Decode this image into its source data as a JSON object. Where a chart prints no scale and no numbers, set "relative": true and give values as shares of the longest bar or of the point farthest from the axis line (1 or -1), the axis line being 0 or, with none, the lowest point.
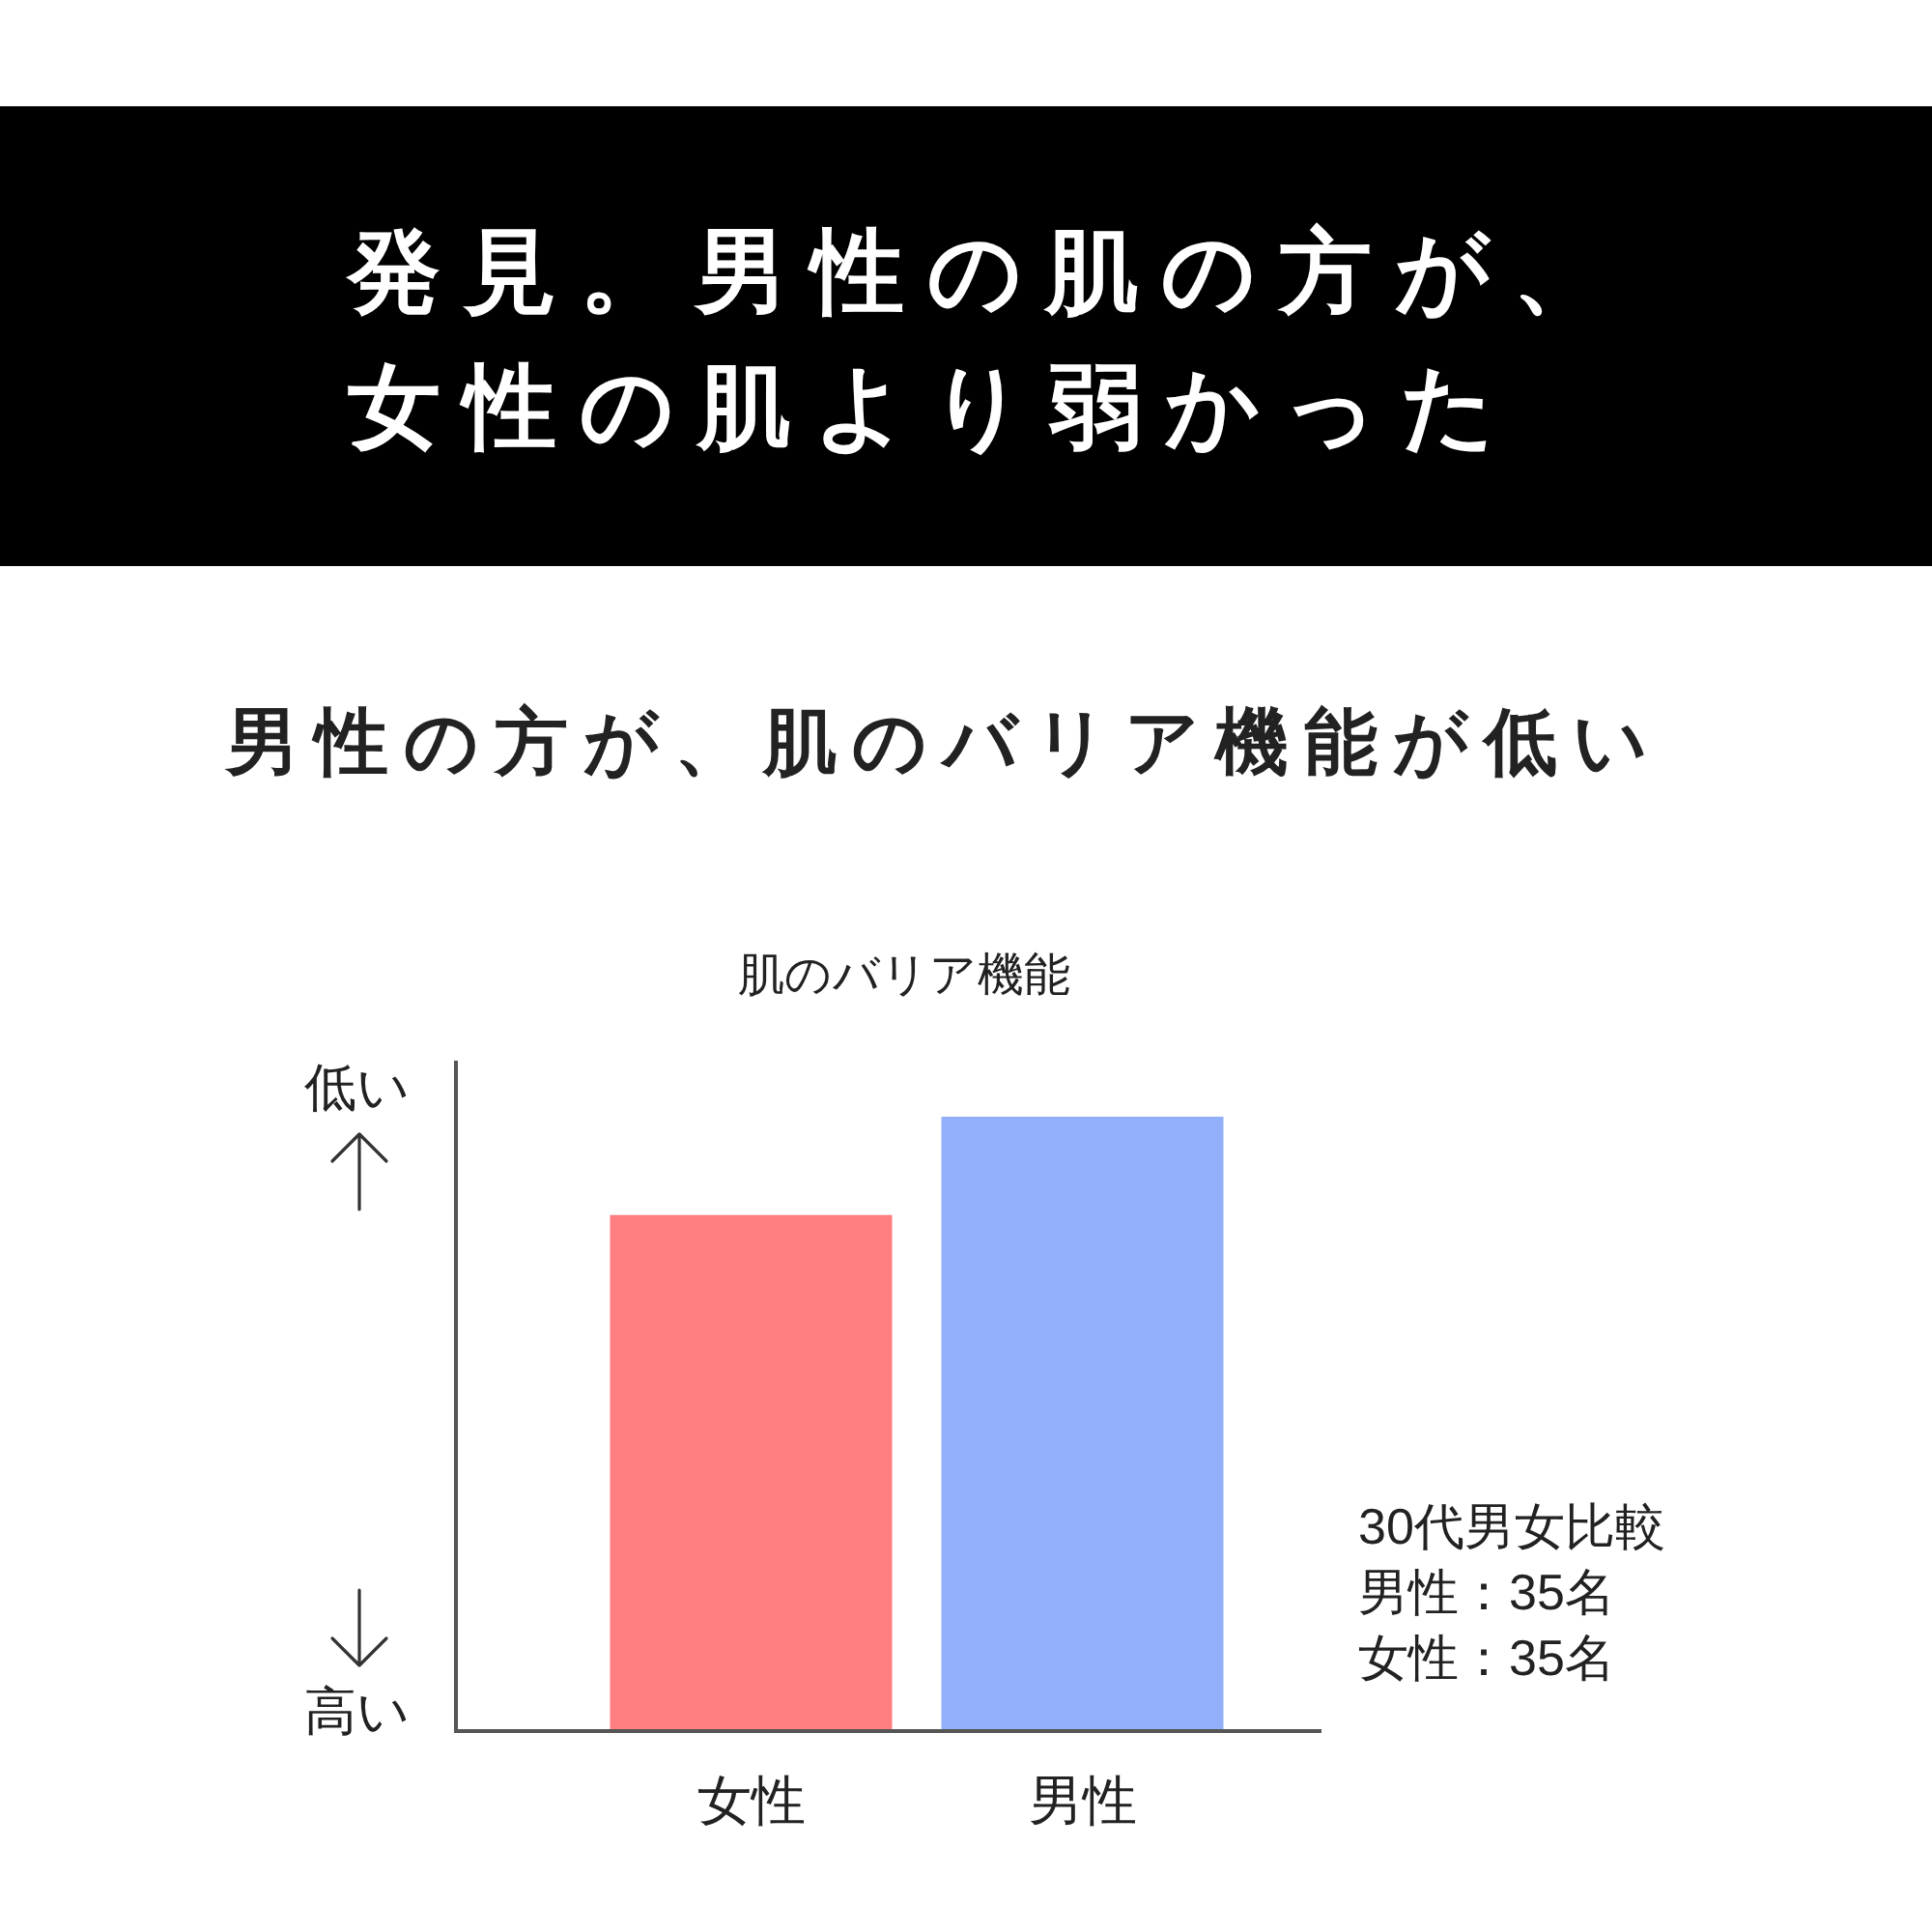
{
  "chart_data": {
    "type": "bar",
    "title": "発見。男性の肌の方が、女性の肌より弱かった",
    "subtitle": "男性の方が、肌のバリア機能が低い",
    "categories": [
      "女性",
      "男性"
    ],
    "values": [
      0.84,
      1
    ],
    "colors": [
      "#ff7f80",
      "#91b0f9"
    ],
    "relative": true,
    "annotations": [
      "肌のバリア機能",
      "低い",
      "高い",
      "30代男女比較",
      "男性：35名",
      "女性：35名"
    ]
  }
}
